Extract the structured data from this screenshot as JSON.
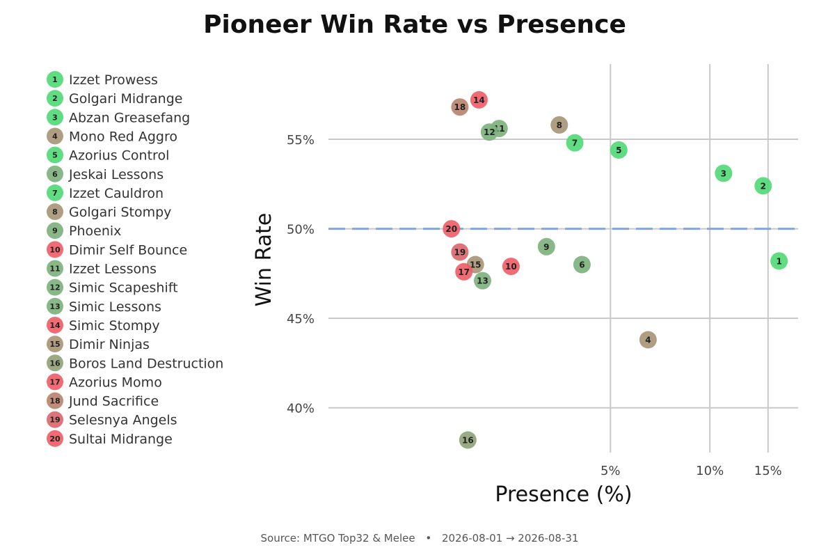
{
  "chart_data": {
    "type": "scatter",
    "title": "Pioneer Win Rate vs Presence",
    "xlabel": "Presence (%)",
    "ylabel": "Win Rate",
    "x_scale": "log",
    "x_range": [
      0.7,
      18.5
    ],
    "y_range": [
      37.5,
      59.2
    ],
    "x_ticks": [
      5,
      10,
      15
    ],
    "x_tick_labels": [
      "5%",
      "10%",
      "15%"
    ],
    "y_ticks": [
      40,
      45,
      50,
      55
    ],
    "y_tick_labels": [
      "40%",
      "45%",
      "50%",
      "55%"
    ],
    "reference_line": {
      "y": 50,
      "style": "dashed",
      "color": "#7ea6e8"
    },
    "grid": true,
    "legend_position": "left",
    "colors": {
      "green": "#52d977",
      "sage": "#7fb27e",
      "olive": "#93a37a",
      "tan": "#a89676",
      "brown": "#b98470",
      "pink": "#d9686e",
      "red": "#f05e68"
    },
    "points": [
      {
        "n": "1",
        "name": "Izzet Prowess",
        "x": 16.2,
        "y": 48.2,
        "color": "#52d977"
      },
      {
        "n": "2",
        "name": "Golgari Midrange",
        "x": 14.5,
        "y": 52.4,
        "color": "#52d977"
      },
      {
        "n": "3",
        "name": "Abzan Greasefang",
        "x": 11.0,
        "y": 53.1,
        "color": "#52d977"
      },
      {
        "n": "4",
        "name": "Mono Red Aggro",
        "x": 6.5,
        "y": 43.8,
        "color": "#a89676"
      },
      {
        "n": "5",
        "name": "Azorius Control",
        "x": 5.3,
        "y": 54.4,
        "color": "#52d977"
      },
      {
        "n": "6",
        "name": "Jeskai Lessons",
        "x": 4.1,
        "y": 48.0,
        "color": "#7fb27e"
      },
      {
        "n": "7",
        "name": "Izzet Cauldron",
        "x": 3.9,
        "y": 54.8,
        "color": "#52d977"
      },
      {
        "n": "8",
        "name": "Golgari Stompy",
        "x": 3.5,
        "y": 55.8,
        "color": "#a89676"
      },
      {
        "n": "9",
        "name": "Phoenix",
        "x": 3.2,
        "y": 49.0,
        "color": "#7fb27e"
      },
      {
        "n": "10",
        "name": "Dimir Self Bounce",
        "x": 2.5,
        "y": 47.9,
        "color": "#f05e68"
      },
      {
        "n": "11",
        "name": "Izzet Lessons",
        "x": 2.3,
        "y": 55.6,
        "color": "#7fb27e"
      },
      {
        "n": "12",
        "name": "Simic Scapeshift",
        "x": 2.15,
        "y": 55.4,
        "color": "#7fb27e"
      },
      {
        "n": "13",
        "name": "Simic Lessons",
        "x": 2.05,
        "y": 47.1,
        "color": "#7fb27e"
      },
      {
        "n": "14",
        "name": "Simic Stompy",
        "x": 2.0,
        "y": 57.2,
        "color": "#f05e68"
      },
      {
        "n": "15",
        "name": "Dimir Ninjas",
        "x": 1.95,
        "y": 48.0,
        "color": "#a89676"
      },
      {
        "n": "16",
        "name": "Boros Land Destruction",
        "x": 1.85,
        "y": 38.2,
        "color": "#93a37a"
      },
      {
        "n": "17",
        "name": "Azorius Momo",
        "x": 1.8,
        "y": 47.6,
        "color": "#f05e68"
      },
      {
        "n": "18",
        "name": "Jund Sacrifice",
        "x": 1.75,
        "y": 56.8,
        "color": "#b98470"
      },
      {
        "n": "19",
        "name": "Selesnya Angels",
        "x": 1.75,
        "y": 48.7,
        "color": "#d9686e"
      },
      {
        "n": "20",
        "name": "Sultai Midrange",
        "x": 1.65,
        "y": 50.0,
        "color": "#f05e68"
      }
    ]
  },
  "source": {
    "text": "Source: MTGO Top32 & Melee",
    "bullet": "•",
    "date_range": "2026-08-01 → 2026-08-31"
  }
}
